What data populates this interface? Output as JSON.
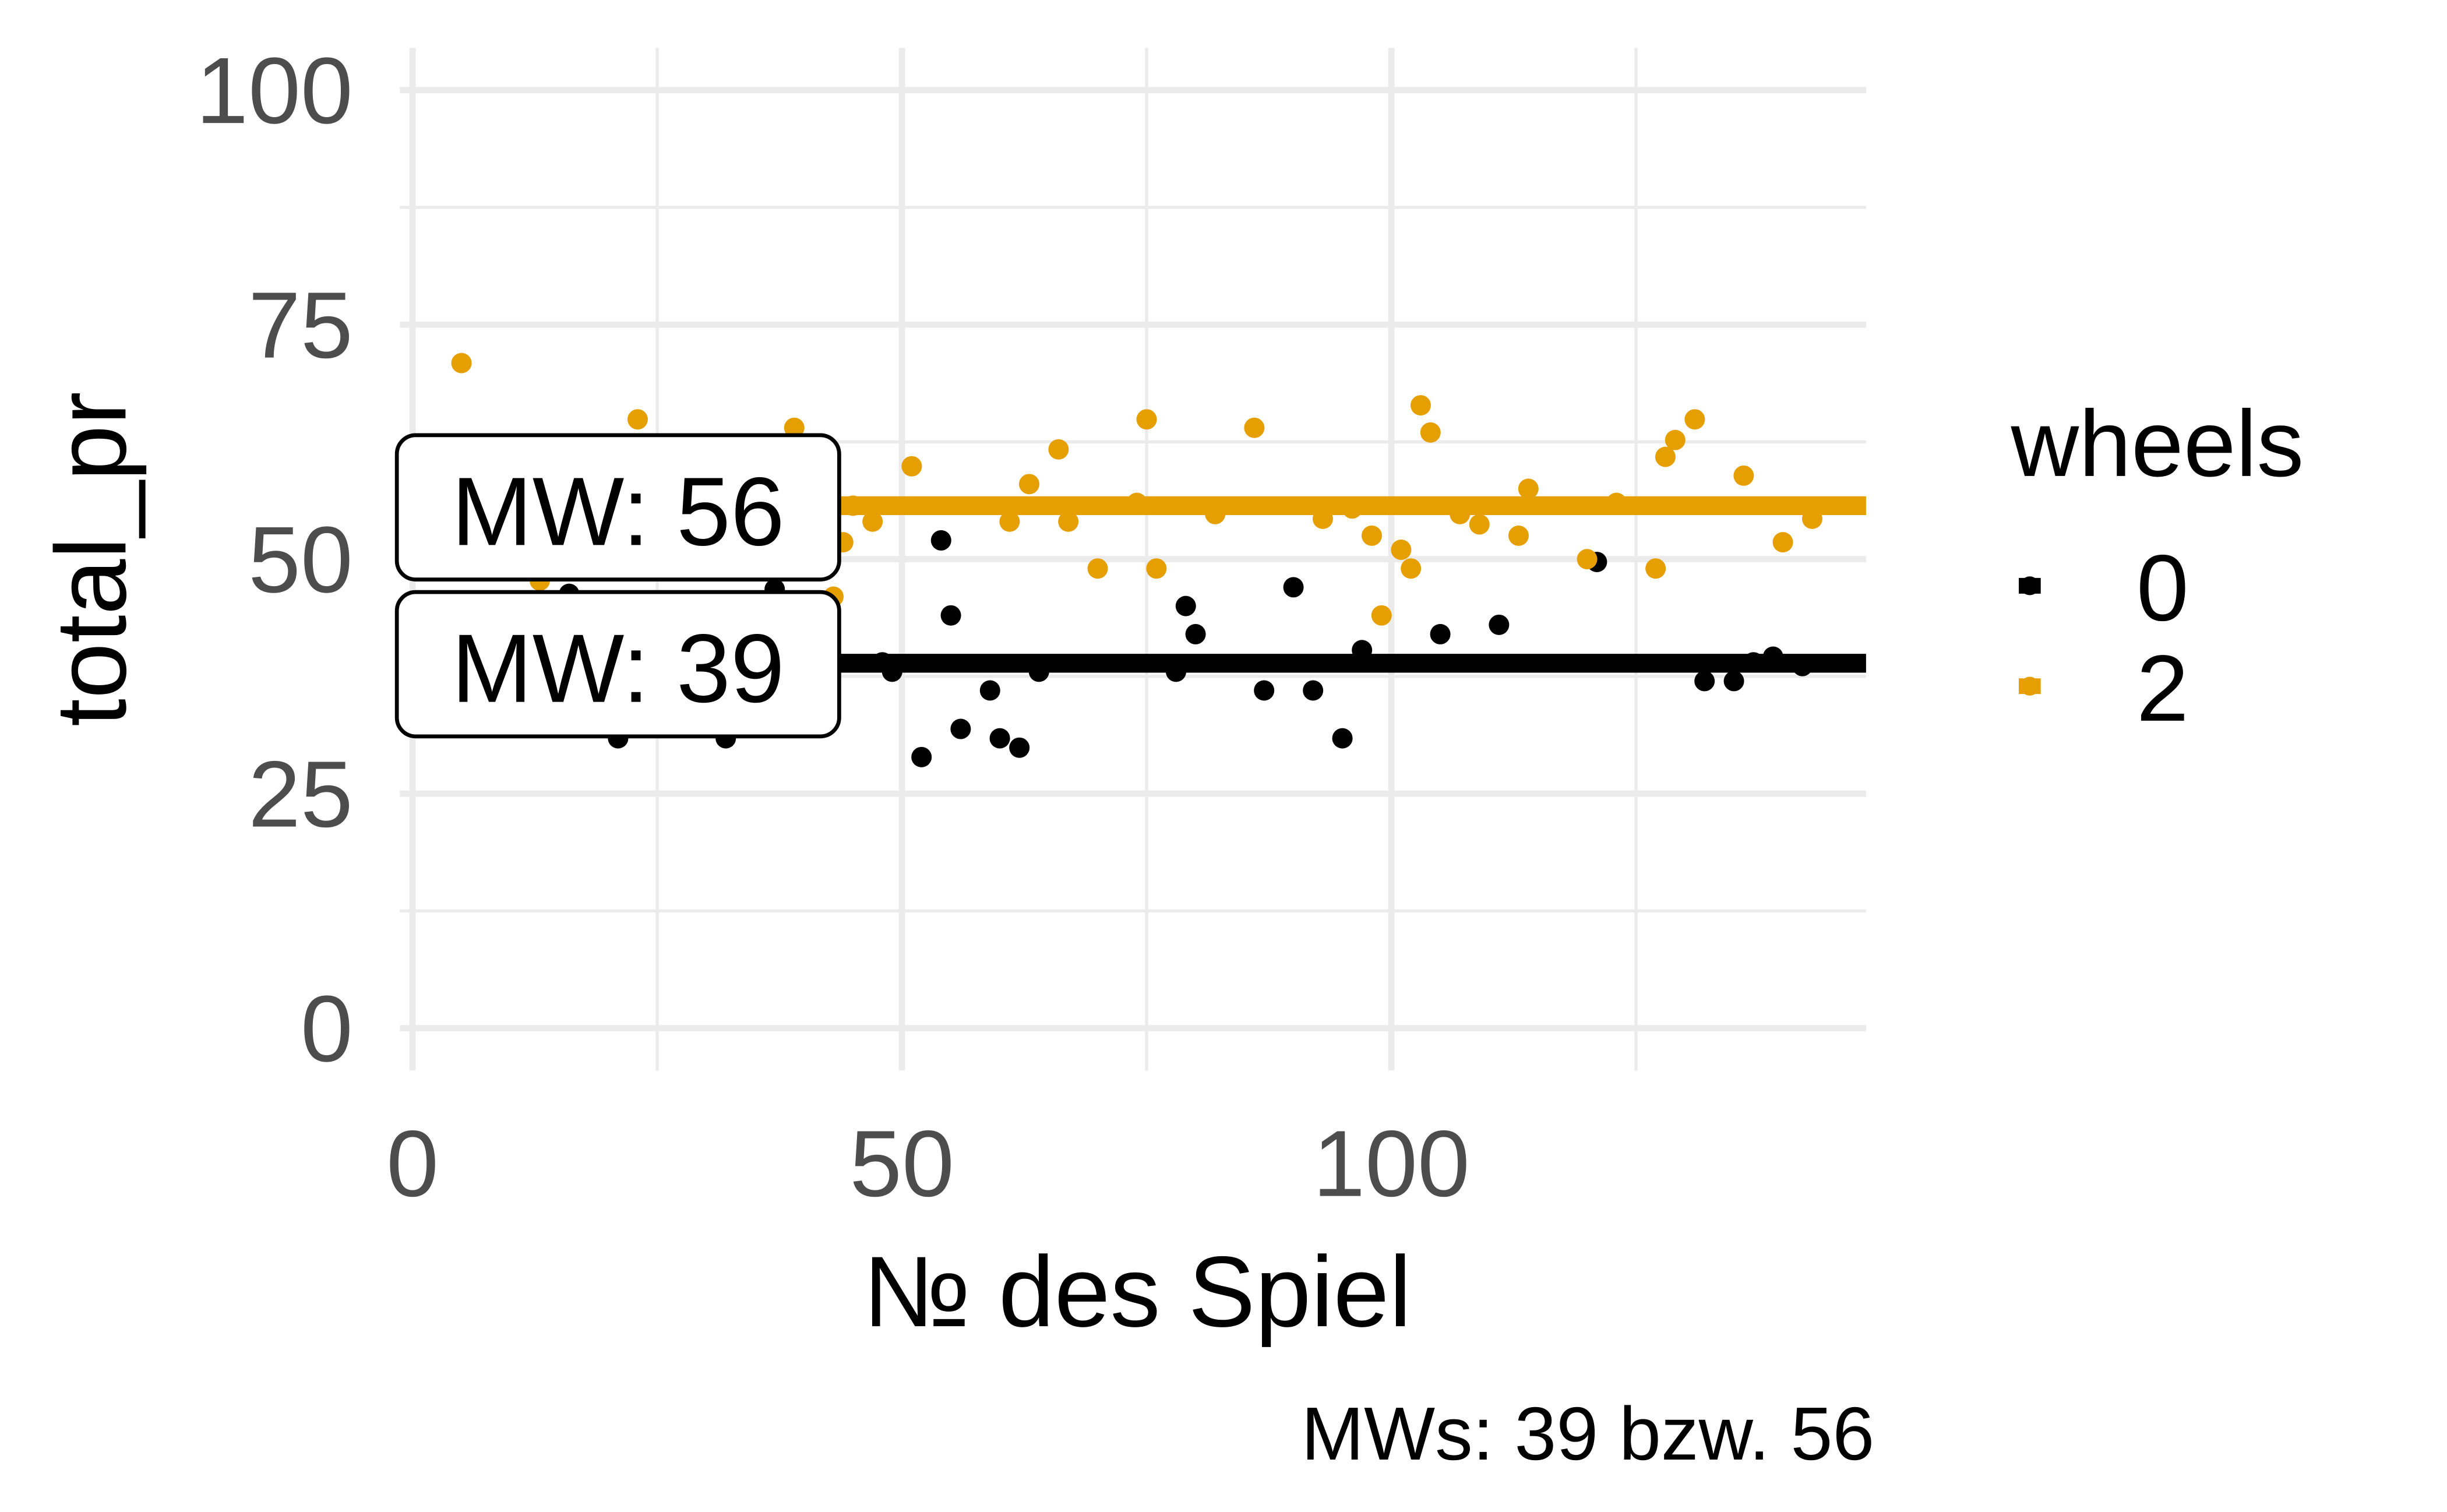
{
  "chart_data": {
    "type": "scatter",
    "title": "",
    "xlabel": "№ des Spiel",
    "ylabel": "total_pr",
    "caption": "MWs: 39 bzw. 56",
    "xlim": [
      -1.3,
      148.5
    ],
    "ylim": [
      -4.5,
      104.5
    ],
    "x_ticks": [
      0,
      50,
      100
    ],
    "x_tick_labels": [
      "0",
      "50",
      "100"
    ],
    "y_ticks": [
      0,
      25,
      50,
      75,
      100
    ],
    "y_tick_labels": [
      "0",
      "25",
      "50",
      "75",
      "100"
    ],
    "grid": true,
    "legend": {
      "title": "wheels",
      "placement": "right",
      "entries": [
        "0",
        "2"
      ]
    },
    "colors": {
      "0": "#000000",
      "2": "#E69F00"
    },
    "series": [
      {
        "name": "0",
        "color": "#000000",
        "mean": 39,
        "mean_label": "MW: 39",
        "points": [
          [
            16,
            46.3
          ],
          [
            21,
            30.9
          ],
          [
            32,
            30.9
          ],
          [
            37,
            46.8
          ],
          [
            48,
            39
          ],
          [
            49,
            38
          ],
          [
            52,
            28.9
          ],
          [
            54,
            52
          ],
          [
            55,
            44
          ],
          [
            56,
            31.9
          ],
          [
            59,
            36
          ],
          [
            60,
            30.9
          ],
          [
            62,
            29.9
          ],
          [
            64,
            38
          ],
          [
            78,
            38
          ],
          [
            79,
            45
          ],
          [
            80,
            42
          ],
          [
            87,
            36
          ],
          [
            90,
            47
          ],
          [
            92,
            36
          ],
          [
            95,
            30.9
          ],
          [
            97,
            40.3
          ],
          [
            105,
            42
          ],
          [
            111,
            43
          ],
          [
            121,
            49.7
          ],
          [
            132,
            37
          ],
          [
            135,
            37
          ],
          [
            137,
            39
          ],
          [
            139,
            39.6
          ],
          [
            142,
            38.6
          ]
        ]
      },
      {
        "name": "2",
        "color": "#E69F00",
        "mean": 56,
        "mean_label": "MW: 56",
        "points": [
          [
            5,
            70.9
          ],
          [
            13,
            47.7
          ],
          [
            23,
            64.9
          ],
          [
            39,
            64
          ],
          [
            43,
            46
          ],
          [
            44,
            51.8
          ],
          [
            45,
            55.7
          ],
          [
            47,
            54
          ],
          [
            51,
            59.9
          ],
          [
            61,
            54
          ],
          [
            63,
            58
          ],
          [
            66,
            61.7
          ],
          [
            67,
            54
          ],
          [
            70,
            49
          ],
          [
            74,
            56
          ],
          [
            75,
            64.9
          ],
          [
            76,
            49
          ],
          [
            82,
            54.8
          ],
          [
            86,
            64
          ],
          [
            93,
            54.3
          ],
          [
            96,
            55.4
          ],
          [
            98,
            52.5
          ],
          [
            99,
            44
          ],
          [
            101,
            51
          ],
          [
            102,
            49
          ],
          [
            103,
            66.4
          ],
          [
            104,
            63.5
          ],
          [
            107,
            54.8
          ],
          [
            109,
            53.7
          ],
          [
            113,
            52.5
          ],
          [
            114,
            57.5
          ],
          [
            120,
            50
          ],
          [
            123,
            56
          ],
          [
            127,
            49
          ],
          [
            128,
            60.9
          ],
          [
            129,
            62.7
          ],
          [
            131,
            64.9
          ],
          [
            136,
            58.9
          ],
          [
            140,
            51.8
          ],
          [
            143,
            54.3
          ]
        ]
      }
    ]
  }
}
